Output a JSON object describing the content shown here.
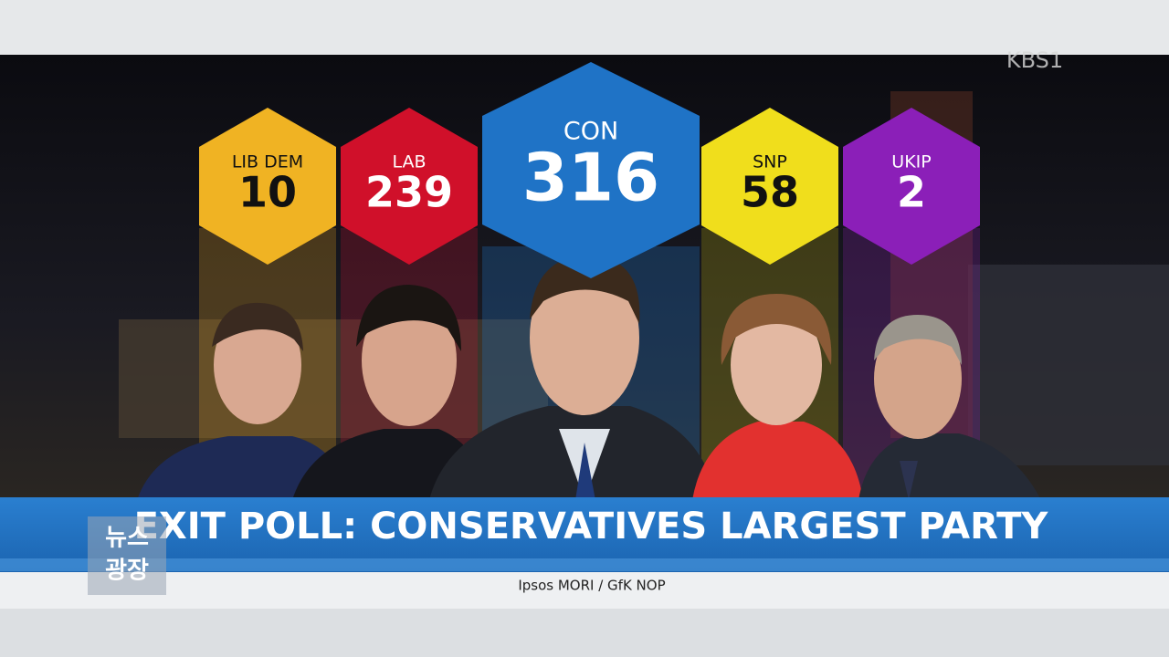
{
  "channel": "KBS1",
  "program_logo": [
    "뉴스",
    "광장"
  ],
  "parties": [
    {
      "name": "LIB DEM",
      "seats": "10"
    },
    {
      "name": "LAB",
      "seats": "239"
    },
    {
      "name": "CON",
      "seats": "316"
    },
    {
      "name": "SNP",
      "seats": "58"
    },
    {
      "name": "UKIP",
      "seats": "2"
    }
  ],
  "headline": "EXIT POLL: CONSERVATIVES LARGEST PARTY",
  "source": "Ipsos MORI / GfK NOP"
}
